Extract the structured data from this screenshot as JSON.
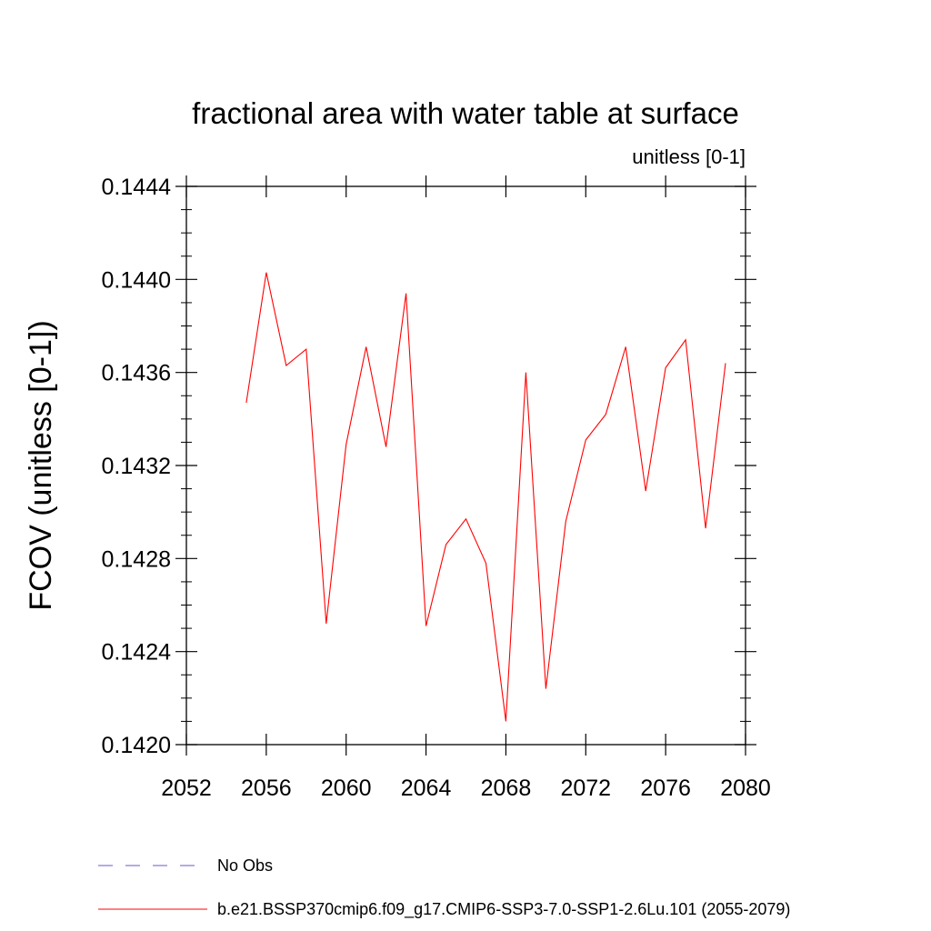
{
  "chart_data": {
    "type": "line",
    "title": "fractional area with water table at surface",
    "subtitle": "unitless [0-1]",
    "xlabel": "",
    "ylabel": "FCOV  (unitless [0-1])",
    "xlim": [
      2052,
      2080
    ],
    "ylim": [
      0.142,
      0.1444
    ],
    "xticks": [
      2052,
      2056,
      2060,
      2064,
      2068,
      2072,
      2076,
      2080
    ],
    "xtick_labels": [
      "2052",
      "2056",
      "2060",
      "2064",
      "2068",
      "2072",
      "2076",
      "2080"
    ],
    "yticks": [
      0.142,
      0.1424,
      0.1428,
      0.1432,
      0.1436,
      0.144,
      0.1444
    ],
    "ytick_labels": [
      "0.1420",
      "0.1424",
      "0.1428",
      "0.1432",
      "0.1436",
      "0.1440",
      "0.1444"
    ],
    "grid": false,
    "legend_position": "bottom",
    "series": [
      {
        "name": "b.e21.BSSP370cmip6.f09_g17.CMIP6-SSP3-7.0-SSP1-2.6Lu.101 (2055-2079)",
        "color": "#ff0000",
        "line_style": "solid",
        "x": [
          2055,
          2056,
          2057,
          2058,
          2059,
          2060,
          2061,
          2062,
          2063,
          2064,
          2065,
          2066,
          2067,
          2068,
          2069,
          2070,
          2071,
          2072,
          2073,
          2074,
          2075,
          2076,
          2077,
          2078,
          2079
        ],
        "y": [
          0.14347,
          0.14403,
          0.14363,
          0.1437,
          0.14252,
          0.14329,
          0.14371,
          0.14328,
          0.14394,
          0.14251,
          0.14286,
          0.14297,
          0.14278,
          0.1421,
          0.1436,
          0.14224,
          0.14296,
          0.14331,
          0.14342,
          0.14371,
          0.14309,
          0.14362,
          0.14374,
          0.14293,
          0.14364
        ]
      }
    ],
    "legend": [
      {
        "label": "No Obs",
        "color": "#6a5acd",
        "line_style": "dashed"
      },
      {
        "label": "b.e21.BSSP370cmip6.f09_g17.CMIP6-SSP3-7.0-SSP1-2.6Lu.101 (2055-2079)",
        "color": "#ff0000",
        "line_style": "solid"
      }
    ]
  }
}
